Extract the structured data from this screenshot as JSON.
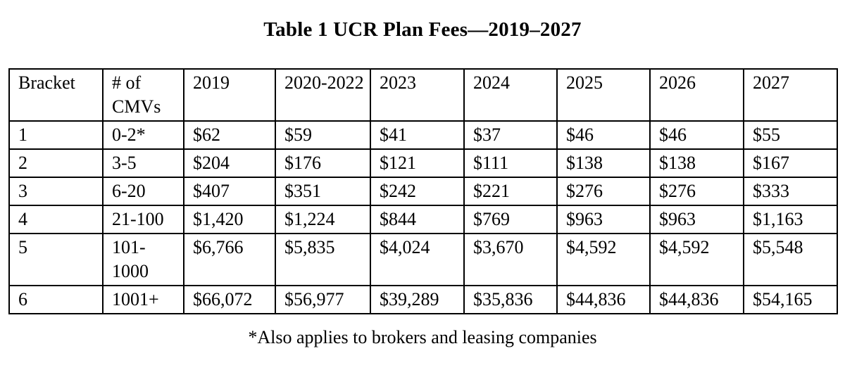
{
  "title": "Table 1 UCR Plan Fees—2019–2027",
  "table": {
    "columns": [
      {
        "label": "Bracket"
      },
      {
        "label": "# of CMVs"
      },
      {
        "label": "2019"
      },
      {
        "label": "2020-2022"
      },
      {
        "label": "2023"
      },
      {
        "label": "2024"
      },
      {
        "label": "2025"
      },
      {
        "label": "2026"
      },
      {
        "label": "2027"
      }
    ],
    "rows": [
      [
        "1",
        "0-2*",
        "$62",
        "$59",
        "$41",
        "$37",
        "$46",
        "$46",
        "$55"
      ],
      [
        "2",
        "3-5",
        "$204",
        "$176",
        "$121",
        "$111",
        "$138",
        "$138",
        "$167"
      ],
      [
        "3",
        "6-20",
        "$407",
        "$351",
        "$242",
        "$221",
        "$276",
        "$276",
        "$333"
      ],
      [
        "4",
        "21-100",
        "$1,420",
        "$1,224",
        "$844",
        "$769",
        "$963",
        "$963",
        "$1,163"
      ],
      [
        "5",
        "101-1000",
        "$6,766",
        "$5,835",
        "$4,024",
        "$3,670",
        "$4,592",
        "$4,592",
        "$5,548"
      ],
      [
        "6",
        "1001+",
        "$66,072",
        "$56,977",
        "$39,289",
        "$35,836",
        "$44,836",
        "$44,836",
        "$54,165"
      ]
    ]
  },
  "footnote": "*Also applies to brokers and leasing companies"
}
